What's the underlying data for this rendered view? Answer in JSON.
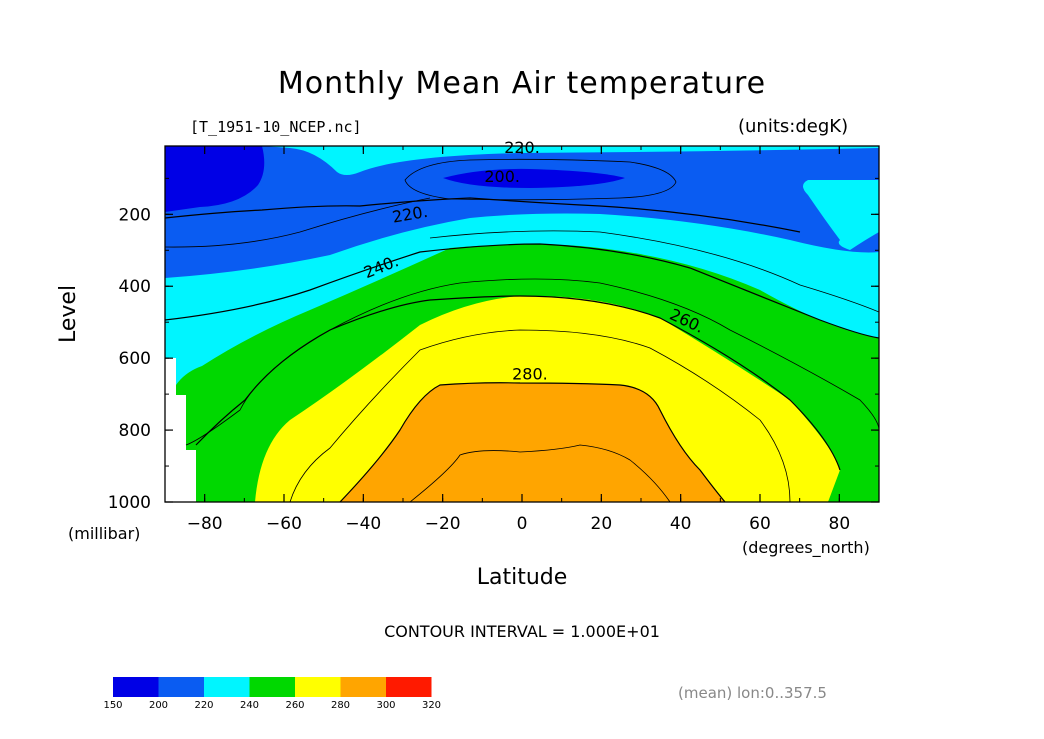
{
  "title": "Monthly Mean Air temperature",
  "file_label": "[T_1951-10_NCEP.nc]",
  "units_label": "(units:degK)",
  "ylabel": "Level",
  "yunit": "(millibar)",
  "xlabel": "Latitude",
  "xunit": "(degrees_north)",
  "contour_interval": "CONTOUR INTERVAL = 1.000E+01",
  "mean_note": "(mean) lon:0..357.5",
  "chart_data": {
    "type": "heatmap",
    "x_ticks": [
      -80,
      -60,
      -40,
      -20,
      0,
      20,
      40,
      60,
      80
    ],
    "x_tick_labels": [
      "−80",
      "−60",
      "−40",
      "−20",
      "0",
      "20",
      "40",
      "60",
      "80"
    ],
    "y_ticks": [
      200,
      400,
      600,
      800,
      1000
    ],
    "xlim": [
      -90,
      90
    ],
    "ylim": [
      1000,
      10
    ],
    "contour_labels": [
      {
        "text": "220.",
        "x": 0,
        "y": 30
      },
      {
        "text": "200.",
        "x": -5,
        "y": 110
      },
      {
        "text": "220.",
        "x": -28,
        "y": 215
      },
      {
        "text": "240.",
        "x": -35,
        "y": 360
      },
      {
        "text": "260.",
        "x": 41,
        "y": 510
      },
      {
        "text": "280.",
        "x": 2,
        "y": 660
      }
    ],
    "color_levels": [
      150,
      200,
      220,
      240,
      260,
      280,
      300,
      320
    ],
    "colors": [
      "#0000e6",
      "#0a5cf2",
      "#00f5ff",
      "#00d800",
      "#ffff00",
      "#ffa500",
      "#ff1a00"
    ]
  }
}
